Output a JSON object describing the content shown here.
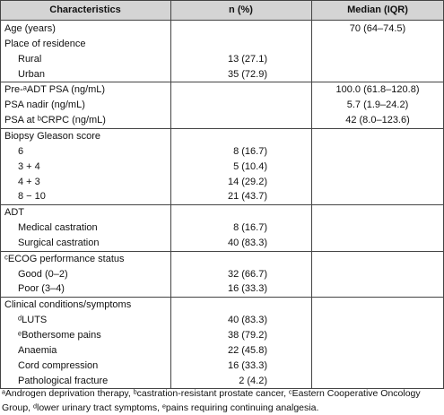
{
  "table": {
    "headers": [
      "Characteristics",
      "n (%)",
      "Median (IQR)"
    ],
    "sections": [
      [
        {
          "label": "Age (years)",
          "median": "70 (64–74.5)"
        },
        {
          "label": "Place of residence",
          "items": [
            {
              "label": "Rural",
              "n": "13 (27.1)"
            },
            {
              "label": "Urban",
              "n": "35 (72.9)"
            }
          ]
        }
      ],
      [
        {
          "label": "Pre-ᵃADT PSA (ng/mL)",
          "median": "100.0 (61.8–120.8)"
        },
        {
          "label": "PSA nadir (ng/mL)",
          "median": "5.7 (1.9–24.2)"
        },
        {
          "label": "PSA at ᵇCRPC (ng/mL)",
          "median": "42 (8.0–123.6)"
        }
      ],
      [
        {
          "label": "Biopsy Gleason score",
          "items": [
            {
              "label": "6",
              "n": "8 (16.7)"
            },
            {
              "label": "3 + 4",
              "n": "5 (10.4)"
            },
            {
              "label": "4 + 3",
              "n": "14 (29.2)"
            },
            {
              "label": "8 − 10",
              "n": "21 (43.7)"
            }
          ]
        }
      ],
      [
        {
          "label": "ADT",
          "items": [
            {
              "label": "Medical castration",
              "n": "8 (16.7)"
            },
            {
              "label": "Surgical castration",
              "n": "40 (83.3)"
            }
          ]
        }
      ],
      [
        {
          "label": "ᶜECOG performance status",
          "items": [
            {
              "label": "Good (0–2)",
              "n": "32 (66.7)"
            },
            {
              "label": "Poor (3–4)",
              "n": "16 (33.3)"
            }
          ]
        }
      ],
      [
        {
          "label": "Clinical conditions/symptoms",
          "items": [
            {
              "label": "ᵈLUTS",
              "n": "40 (83.3)"
            },
            {
              "label": "ᵉBothersome pains",
              "n": "38 (79.2)"
            },
            {
              "label": "Anaemia",
              "n": "22 (45.8)"
            },
            {
              "label": "Cord compression",
              "n": "16 (33.3)"
            },
            {
              "label": "Pathological fracture",
              "n": "2 (4.2)"
            }
          ]
        }
      ]
    ]
  },
  "footnote": "ᵃAndrogen deprivation therapy, ᵇcastration-resistant prostate cancer, ᶜEastern Cooperative Oncology Group, ᵈlower urinary tract symptoms, ᵉpains requiring continuing analgesia."
}
